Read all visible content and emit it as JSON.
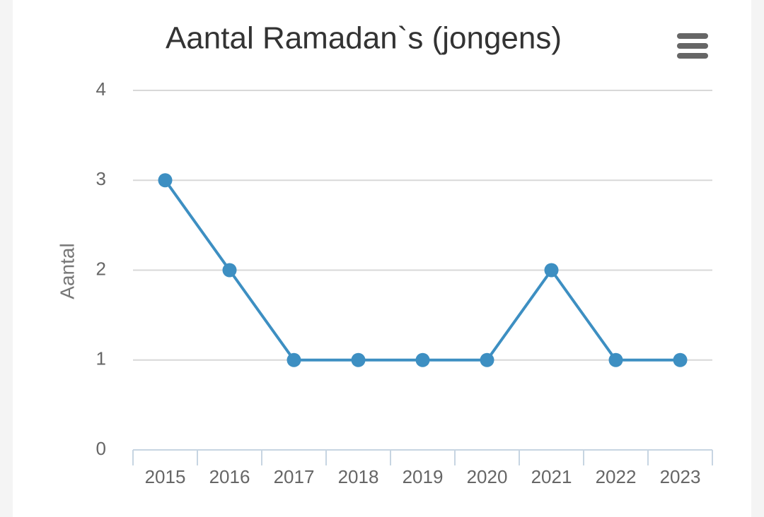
{
  "chart_data": {
    "type": "line",
    "title": "Aantal Ramadan`s (jongens)",
    "y_label": "Aantal",
    "categories": [
      "2015",
      "2016",
      "2017",
      "2018",
      "2019",
      "2020",
      "2021",
      "2022",
      "2023"
    ],
    "values": [
      3,
      2,
      1,
      1,
      1,
      1,
      2,
      1,
      1
    ],
    "color": "#3d8fc2",
    "ylim": [
      0,
      4
    ],
    "yticks": [
      0,
      1,
      2,
      3,
      4
    ],
    "grid": true
  }
}
